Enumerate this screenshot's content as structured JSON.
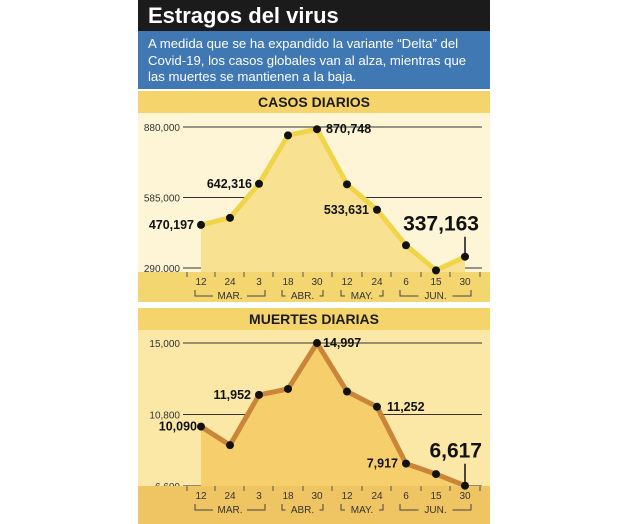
{
  "title": "Estragos del virus",
  "intro": "A medida que se ha expandido la variante “Delta” del Covid-19, los casos globales van al alza, mientras que las muertes se mantienen a la baja.",
  "colors": {
    "title_bg": "#1b1b1b",
    "intro_bg": "#3f78b2",
    "header_bg": "#f5d56b",
    "cases_line": "#f0d54a",
    "deaths_line": "#c98638"
  },
  "chart_data": [
    {
      "type": "line",
      "title": "CASOS DIARIOS",
      "x_ticks": [
        "12",
        "24",
        "3",
        "18",
        "30",
        "12",
        "24",
        "6",
        "15",
        "30"
      ],
      "months": [
        "MAR.",
        "ABR.",
        "MAY.",
        "JUN."
      ],
      "y_ticks": [
        "880,000",
        "585,000",
        "290,000"
      ],
      "y_tick_values": [
        880000,
        585000,
        290000
      ],
      "values": [
        470197,
        500000,
        642316,
        845000,
        870748,
        640000,
        533631,
        385000,
        280000,
        337163
      ],
      "labels": [
        "470,197",
        null,
        "642,316",
        null,
        "870,748",
        null,
        "533,631",
        null,
        null,
        "337,163"
      ],
      "grid": true
    },
    {
      "type": "line",
      "title": "MUERTES DIARIAS",
      "x_ticks": [
        "12",
        "24",
        "3",
        "18",
        "30",
        "12",
        "24",
        "6",
        "15",
        "30"
      ],
      "months": [
        "MAR.",
        "ABR.",
        "MAY.",
        "JUN."
      ],
      "y_ticks": [
        "15,000",
        "10,800",
        "6,600"
      ],
      "y_tick_values": [
        15000,
        10800,
        6600
      ],
      "values": [
        10090,
        9000,
        11952,
        12300,
        14997,
        12150,
        11252,
        7917,
        7300,
        6617
      ],
      "labels": [
        "10,090",
        null,
        "11,952",
        null,
        "14,997",
        null,
        "11,252",
        "7,917",
        null,
        "6,617"
      ],
      "grid": true
    }
  ]
}
